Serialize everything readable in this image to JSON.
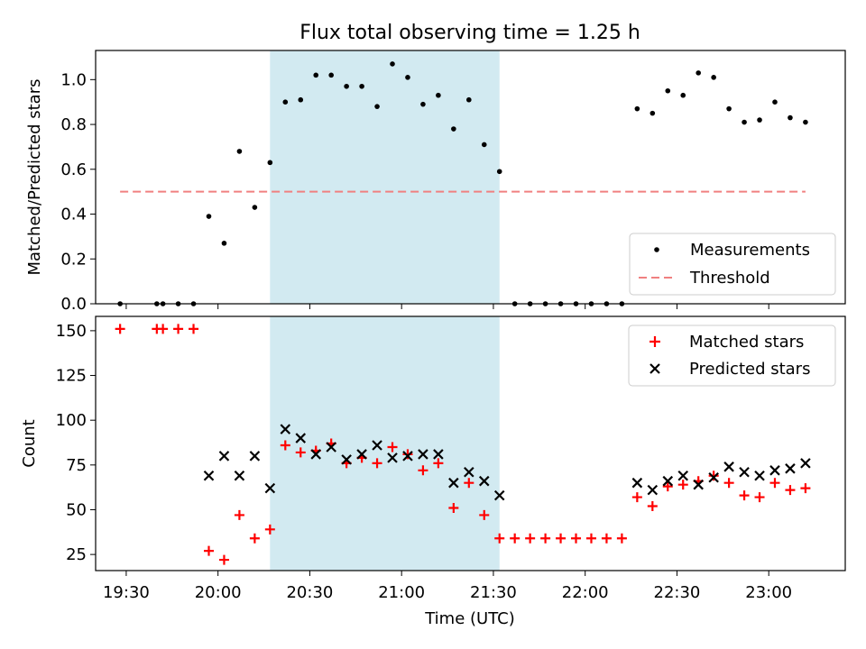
{
  "figure": {
    "title": "Flux total observing time = 1.25 h"
  },
  "colors": {
    "shade": "#add8e6",
    "threshold": "#f08080",
    "matched": "#ff0000",
    "predicted": "#000000",
    "measurement": "#000000"
  },
  "chart_data": [
    {
      "type": "scatter",
      "panel": "top",
      "title": "Flux total observing time = 1.25 h",
      "xlabel": "",
      "ylabel": "Matched/Predicted stars",
      "xlim": [
        "19:20",
        "23:25"
      ],
      "ylim": [
        0,
        1.13
      ],
      "x_ticks": [
        "19:30",
        "20:00",
        "20:30",
        "21:00",
        "21:30",
        "22:00",
        "22:30",
        "23:00"
      ],
      "y_ticks": [
        "0.0",
        "0.2",
        "0.4",
        "0.6",
        "0.8",
        "1.0"
      ],
      "y_tick_values": [
        0,
        0.2,
        0.4,
        0.6,
        0.8,
        1.0
      ],
      "shaded_interval": [
        "20:17",
        "21:32"
      ],
      "legend": {
        "position": "lower-right",
        "entries": [
          "Measurements",
          "Threshold"
        ]
      },
      "series": [
        {
          "name": "Measurements",
          "marker": "dot",
          "points": [
            [
              "19:28",
              0.0
            ],
            [
              "19:40",
              0.0
            ],
            [
              "19:42",
              0.0
            ],
            [
              "19:47",
              0.0
            ],
            [
              "19:52",
              0.0
            ],
            [
              "19:57",
              0.39
            ],
            [
              "20:02",
              0.27
            ],
            [
              "20:07",
              0.68
            ],
            [
              "20:12",
              0.43
            ],
            [
              "20:17",
              0.63
            ],
            [
              "20:22",
              0.9
            ],
            [
              "20:27",
              0.91
            ],
            [
              "20:32",
              1.02
            ],
            [
              "20:37",
              1.02
            ],
            [
              "20:42",
              0.97
            ],
            [
              "20:47",
              0.97
            ],
            [
              "20:52",
              0.88
            ],
            [
              "20:57",
              1.07
            ],
            [
              "21:02",
              1.01
            ],
            [
              "21:07",
              0.89
            ],
            [
              "21:12",
              0.93
            ],
            [
              "21:17",
              0.78
            ],
            [
              "21:22",
              0.91
            ],
            [
              "21:27",
              0.71
            ],
            [
              "21:32",
              0.59
            ],
            [
              "21:37",
              0.0
            ],
            [
              "21:42",
              0.0
            ],
            [
              "21:47",
              0.0
            ],
            [
              "21:52",
              0.0
            ],
            [
              "21:57",
              0.0
            ],
            [
              "22:02",
              0.0
            ],
            [
              "22:07",
              0.0
            ],
            [
              "22:12",
              0.0
            ],
            [
              "22:17",
              0.87
            ],
            [
              "22:22",
              0.85
            ],
            [
              "22:27",
              0.95
            ],
            [
              "22:32",
              0.93
            ],
            [
              "22:37",
              1.03
            ],
            [
              "22:42",
              1.01
            ],
            [
              "22:47",
              0.87
            ],
            [
              "22:52",
              0.81
            ],
            [
              "22:57",
              0.82
            ],
            [
              "23:02",
              0.9
            ],
            [
              "23:07",
              0.83
            ],
            [
              "23:12",
              0.81
            ]
          ]
        },
        {
          "name": "Threshold",
          "style": "dashed-line",
          "points": [
            [
              "19:28",
              0.5
            ],
            [
              "23:12",
              0.5
            ]
          ]
        }
      ]
    },
    {
      "type": "scatter",
      "panel": "bottom",
      "xlabel": "Time (UTC)",
      "ylabel": "Count",
      "xlim": [
        "19:20",
        "23:25"
      ],
      "ylim": [
        16,
        158
      ],
      "x_ticks": [
        "19:30",
        "20:00",
        "20:30",
        "21:00",
        "21:30",
        "22:00",
        "22:30",
        "23:00"
      ],
      "y_ticks": [
        "25",
        "50",
        "75",
        "100",
        "125",
        "150"
      ],
      "y_tick_values": [
        25,
        50,
        75,
        100,
        125,
        150
      ],
      "shaded_interval": [
        "20:17",
        "21:32"
      ],
      "legend": {
        "position": "upper-right",
        "entries": [
          "Matched stars",
          "Predicted stars"
        ]
      },
      "series": [
        {
          "name": "Matched stars",
          "marker": "plus",
          "points": [
            [
              "19:28",
              151
            ],
            [
              "19:40",
              151
            ],
            [
              "19:42",
              151
            ],
            [
              "19:47",
              151
            ],
            [
              "19:52",
              151
            ],
            [
              "19:57",
              27
            ],
            [
              "20:02",
              22
            ],
            [
              "20:07",
              47
            ],
            [
              "20:12",
              34
            ],
            [
              "20:17",
              39
            ],
            [
              "20:22",
              86
            ],
            [
              "20:27",
              82
            ],
            [
              "20:32",
              83
            ],
            [
              "20:37",
              87
            ],
            [
              "20:42",
              76
            ],
            [
              "20:47",
              79
            ],
            [
              "20:52",
              76
            ],
            [
              "20:57",
              85
            ],
            [
              "21:02",
              81
            ],
            [
              "21:07",
              72
            ],
            [
              "21:12",
              76
            ],
            [
              "21:17",
              51
            ],
            [
              "21:22",
              65
            ],
            [
              "21:27",
              47
            ],
            [
              "21:32",
              34
            ],
            [
              "21:37",
              34
            ],
            [
              "21:42",
              34
            ],
            [
              "21:47",
              34
            ],
            [
              "21:52",
              34
            ],
            [
              "21:57",
              34
            ],
            [
              "22:02",
              34
            ],
            [
              "22:07",
              34
            ],
            [
              "22:12",
              34
            ],
            [
              "22:17",
              57
            ],
            [
              "22:22",
              52
            ],
            [
              "22:27",
              63
            ],
            [
              "22:32",
              64
            ],
            [
              "22:37",
              66
            ],
            [
              "22:42",
              69
            ],
            [
              "22:47",
              65
            ],
            [
              "22:52",
              58
            ],
            [
              "22:57",
              57
            ],
            [
              "23:02",
              65
            ],
            [
              "23:07",
              61
            ],
            [
              "23:12",
              62
            ]
          ]
        },
        {
          "name": "Predicted stars",
          "marker": "x",
          "points": [
            [
              "19:57",
              69
            ],
            [
              "20:02",
              80
            ],
            [
              "20:07",
              69
            ],
            [
              "20:12",
              80
            ],
            [
              "20:17",
              62
            ],
            [
              "20:22",
              95
            ],
            [
              "20:27",
              90
            ],
            [
              "20:32",
              81
            ],
            [
              "20:37",
              85
            ],
            [
              "20:42",
              78
            ],
            [
              "20:47",
              81
            ],
            [
              "20:52",
              86
            ],
            [
              "20:57",
              79
            ],
            [
              "21:02",
              80
            ],
            [
              "21:07",
              81
            ],
            [
              "21:12",
              81
            ],
            [
              "21:17",
              65
            ],
            [
              "21:22",
              71
            ],
            [
              "21:27",
              66
            ],
            [
              "21:32",
              58
            ],
            [
              "22:17",
              65
            ],
            [
              "22:22",
              61
            ],
            [
              "22:27",
              66
            ],
            [
              "22:32",
              69
            ],
            [
              "22:37",
              64
            ],
            [
              "22:42",
              68
            ],
            [
              "22:47",
              74
            ],
            [
              "22:52",
              71
            ],
            [
              "22:57",
              69
            ],
            [
              "23:02",
              72
            ],
            [
              "23:07",
              73
            ],
            [
              "23:12",
              76
            ]
          ]
        }
      ]
    }
  ]
}
